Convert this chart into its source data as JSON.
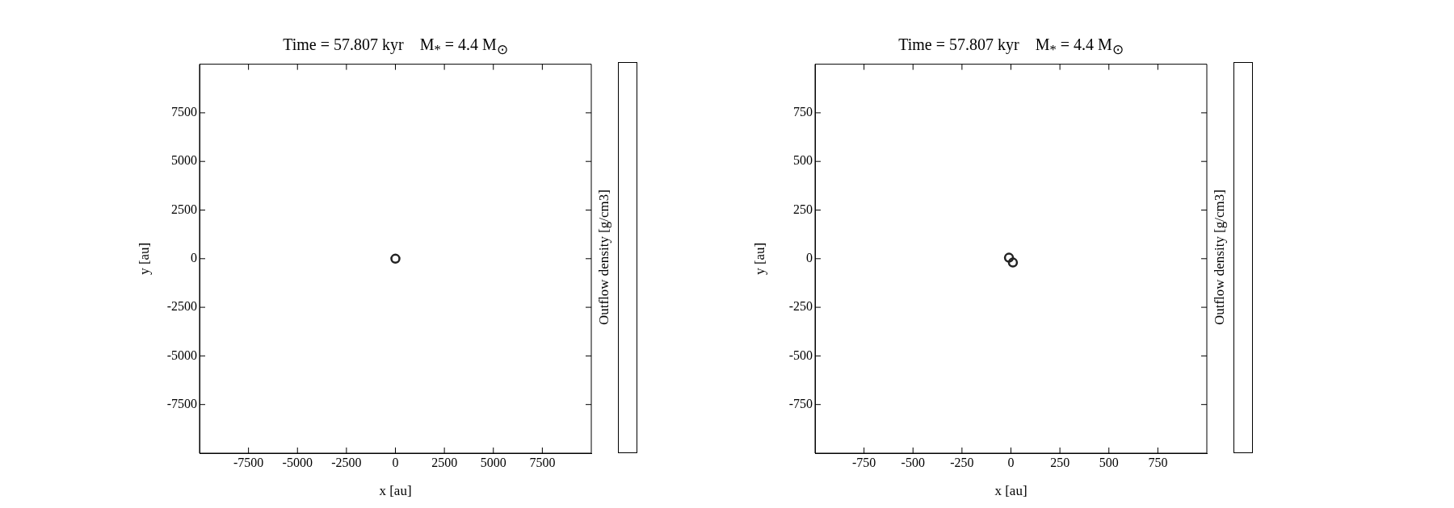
{
  "chart_data": [
    {
      "type": "scatter",
      "title": "Time = 57.807 kyr    M$_{*}$ = 4.4 M$_{⊙}$",
      "xlabel": "x [au]",
      "ylabel": "y [au]",
      "clabel": "Outflow density [g/cm3]",
      "x": [
        0
      ],
      "values": [
        0
      ],
      "color": "#222222",
      "marker": "circle",
      "grid": false,
      "xlim": [
        -10000,
        10000
      ],
      "ylim": [
        -10000,
        10000
      ],
      "xticks": [
        -7500,
        -5000,
        -2500,
        0,
        2500,
        5000,
        7500
      ],
      "yticks": [
        -7500,
        -5000,
        -2500,
        0,
        2500,
        5000,
        7500
      ]
    },
    {
      "type": "scatter",
      "title": "Time = 57.807 kyr    M$_{*}$ = 4.4 M$_{⊙}$",
      "xlabel": "x [au]",
      "ylabel": "y [au]",
      "clabel": "Outflow density [g/cm3]",
      "x": [
        -10,
        10
      ],
      "values": [
        5,
        -20
      ],
      "color": "#222222",
      "marker": "circle",
      "grid": false,
      "xlim": [
        -1000,
        1000
      ],
      "ylim": [
        -1000,
        1000
      ],
      "xticks": [
        -750,
        -500,
        -250,
        0,
        250,
        500,
        750
      ],
      "yticks": [
        -750,
        -500,
        -250,
        0,
        250,
        500,
        750
      ]
    }
  ]
}
